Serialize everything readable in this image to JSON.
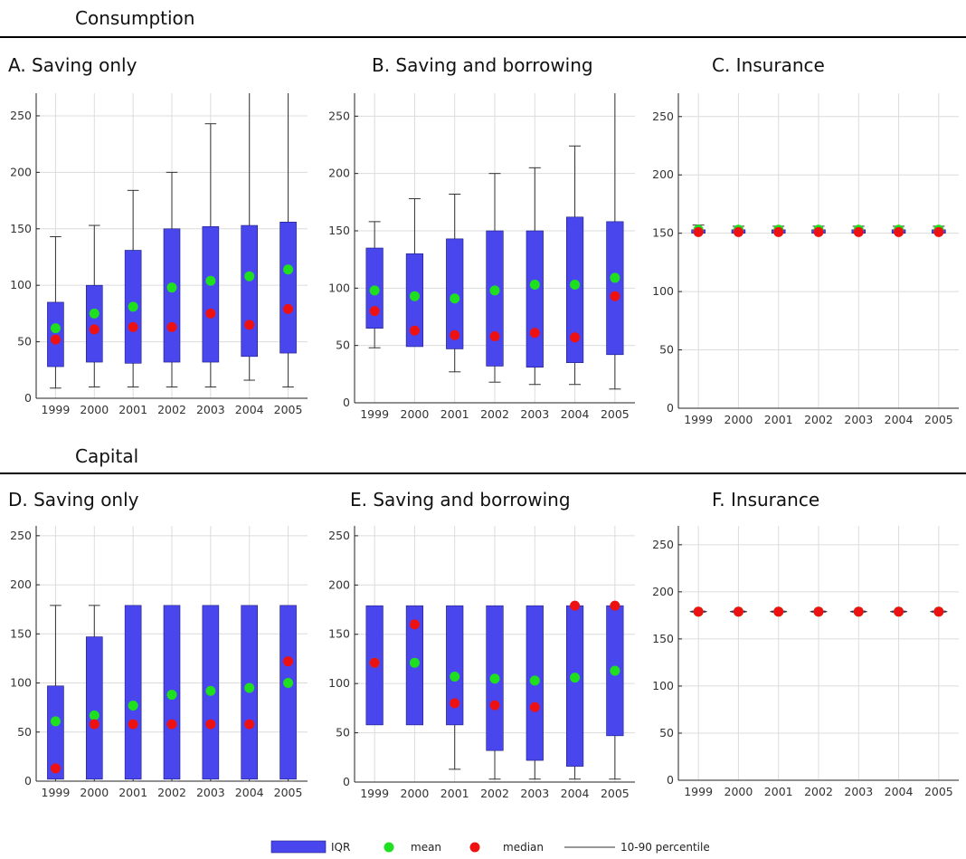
{
  "sections": [
    {
      "title": "Consumption"
    },
    {
      "title": "Capital"
    }
  ],
  "colors": {
    "iqr": "#4a46ee",
    "mean": "#1ee01e",
    "median": "#ee1111",
    "whisker": "#333333",
    "grid": "#dcdcdc"
  },
  "legend": {
    "iqr": "IQR",
    "mean": "mean",
    "median": "median",
    "whisker": "10-90 percentile"
  },
  "chart_data": [
    {
      "type": "box",
      "panel": "A",
      "title": "A. Saving only",
      "categories": [
        "1999",
        "2000",
        "2001",
        "2002",
        "2003",
        "2004",
        "2005"
      ],
      "ylim": [
        0,
        270
      ],
      "yticks": [
        0,
        50,
        100,
        150,
        200,
        250
      ],
      "grid": true,
      "iqr_low": [
        28,
        32,
        31,
        32,
        32,
        37,
        40
      ],
      "iqr_high": [
        85,
        100,
        131,
        150,
        152,
        153,
        156
      ],
      "p10": [
        9,
        10,
        10,
        10,
        10,
        16,
        10
      ],
      "p90": [
        143,
        153,
        184,
        200,
        243,
        270,
        270
      ],
      "mean": [
        62,
        75,
        81,
        98,
        104,
        108,
        114
      ],
      "median": [
        52,
        61,
        63,
        63,
        75,
        65,
        79
      ]
    },
    {
      "type": "box",
      "panel": "B",
      "title": "B. Saving and borrowing",
      "categories": [
        "1999",
        "2000",
        "2001",
        "2002",
        "2003",
        "2004",
        "2005"
      ],
      "ylim": [
        0,
        270
      ],
      "yticks": [
        0,
        50,
        100,
        150,
        200,
        250
      ],
      "grid": true,
      "iqr_low": [
        65,
        49,
        47,
        32,
        31,
        35,
        42
      ],
      "iqr_high": [
        135,
        130,
        143,
        150,
        150,
        162,
        158
      ],
      "p10": [
        48,
        49,
        27,
        18,
        16,
        16,
        12
      ],
      "p90": [
        158,
        178,
        182,
        200,
        205,
        224,
        270
      ],
      "mean": [
        98,
        93,
        91,
        98,
        103,
        103,
        109
      ],
      "median": [
        80,
        63,
        59,
        58,
        61,
        57,
        93
      ]
    },
    {
      "type": "box",
      "panel": "C",
      "title": "C. Insurance",
      "categories": [
        "1999",
        "2000",
        "2001",
        "2002",
        "2003",
        "2004",
        "2005"
      ],
      "ylim": [
        0,
        270
      ],
      "yticks": [
        0,
        50,
        100,
        150,
        200,
        250
      ],
      "grid": true,
      "iqr_low": [
        150,
        150,
        150,
        150,
        150,
        150,
        150
      ],
      "iqr_high": [
        153,
        153,
        153,
        153,
        153,
        153,
        153
      ],
      "p10": [
        150,
        150,
        150,
        150,
        150,
        150,
        150
      ],
      "p90": [
        157,
        156,
        156,
        156,
        156,
        156,
        156
      ],
      "mean": [
        153,
        153,
        153,
        153,
        153,
        153,
        153
      ],
      "median": [
        151,
        151,
        151,
        151,
        151,
        151,
        151
      ]
    },
    {
      "type": "box",
      "panel": "D",
      "title": "D. Saving only",
      "categories": [
        "1999",
        "2000",
        "2001",
        "2002",
        "2003",
        "2004",
        "2005"
      ],
      "ylim": [
        0,
        260
      ],
      "yticks": [
        0,
        50,
        100,
        150,
        200,
        250
      ],
      "grid": true,
      "iqr_low": [
        2,
        2,
        2,
        2,
        2,
        2,
        2
      ],
      "iqr_high": [
        97,
        147,
        179,
        179,
        179,
        179,
        179
      ],
      "p10": [
        0,
        0,
        0,
        0,
        0,
        0,
        0
      ],
      "p90": [
        179,
        179,
        179,
        179,
        179,
        179,
        179
      ],
      "mean": [
        61,
        67,
        77,
        88,
        92,
        95,
        100
      ],
      "median": [
        13,
        58,
        58,
        58,
        58,
        58,
        122
      ]
    },
    {
      "type": "box",
      "panel": "E",
      "title": "E. Saving and borrowing",
      "categories": [
        "1999",
        "2000",
        "2001",
        "2002",
        "2003",
        "2004",
        "2005"
      ],
      "ylim": [
        0,
        260
      ],
      "yticks": [
        0,
        50,
        100,
        150,
        200,
        250
      ],
      "grid": true,
      "iqr_low": [
        58,
        58,
        58,
        32,
        22,
        16,
        47
      ],
      "iqr_high": [
        179,
        179,
        179,
        179,
        179,
        179,
        179
      ],
      "p10": [
        58,
        58,
        13,
        3,
        3,
        3,
        3
      ],
      "p90": [
        179,
        179,
        179,
        179,
        179,
        179,
        179
      ],
      "mean": [
        121,
        121,
        107,
        105,
        103,
        106,
        113
      ],
      "median": [
        121,
        160,
        80,
        78,
        76,
        179,
        179
      ]
    },
    {
      "type": "box",
      "panel": "F",
      "title": "F. Insurance",
      "categories": [
        "1999",
        "2000",
        "2001",
        "2002",
        "2003",
        "2004",
        "2005"
      ],
      "ylim": [
        0,
        270
      ],
      "yticks": [
        0,
        50,
        100,
        150,
        200,
        250
      ],
      "grid": true,
      "iqr_low": [
        179,
        179,
        179,
        179,
        179,
        179,
        179
      ],
      "iqr_high": [
        179,
        179,
        179,
        179,
        179,
        179,
        179
      ],
      "p10": [
        179,
        179,
        179,
        179,
        179,
        179,
        179
      ],
      "p90": [
        179,
        179,
        179,
        179,
        179,
        179,
        179
      ],
      "mean": [
        179,
        179,
        179,
        179,
        179,
        179,
        179
      ],
      "median": [
        179,
        179,
        179,
        179,
        179,
        179,
        179
      ]
    }
  ]
}
